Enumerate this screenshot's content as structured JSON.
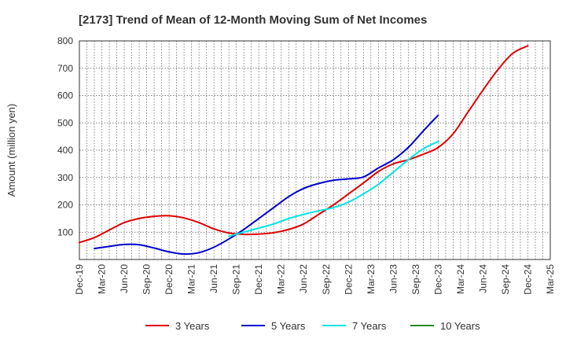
{
  "chart_data": {
    "type": "line",
    "title": "[2173]  Trend of Mean of 12-Month Moving Sum of Net Incomes",
    "ylabel": "Amount (million yen)",
    "xlabel": "",
    "ylim": [
      0,
      800
    ],
    "yticks": [
      100,
      200,
      300,
      400,
      500,
      600,
      700,
      800
    ],
    "grid": true,
    "legend_position": "bottom",
    "x_tick_labels": [
      "Dec-19",
      "Mar-20",
      "Jun-20",
      "Sep-20",
      "Dec-20",
      "Mar-21",
      "Jun-21",
      "Sep-21",
      "Dec-21",
      "Mar-22",
      "Jun-22",
      "Sep-22",
      "Dec-22",
      "Mar-23",
      "Jun-23",
      "Sep-23",
      "Dec-23",
      "Mar-24",
      "Jun-24",
      "Sep-24",
      "Dec-24",
      "Mar-25"
    ],
    "series": [
      {
        "name": "3 Years",
        "color": "#dd0000",
        "values": [
          62,
          80,
          108,
          135,
          150,
          158,
          160,
          152,
          135,
          112,
          97,
          92,
          93,
          98,
          110,
          130,
          165,
          200,
          240,
          280,
          322,
          350,
          365,
          385,
          410,
          460,
          540,
          620,
          695,
          755,
          782
        ]
      },
      {
        "name": "5 Years",
        "color": "#0000cc",
        "start_index": 1,
        "values": [
          40,
          48,
          55,
          54,
          42,
          28,
          20,
          25,
          45,
          75,
          110,
          150,
          190,
          230,
          260,
          278,
          290,
          295,
          302,
          335,
          365,
          410,
          470,
          528
        ]
      },
      {
        "name": "7 Years",
        "color": "#00e5e5",
        "start_index": 10,
        "values": [
          85,
          100,
          115,
          130,
          150,
          165,
          178,
          190,
          210,
          240,
          275,
          320,
          365,
          405,
          432
        ]
      },
      {
        "name": "10 Years",
        "color": "#228b22",
        "values": []
      }
    ]
  }
}
